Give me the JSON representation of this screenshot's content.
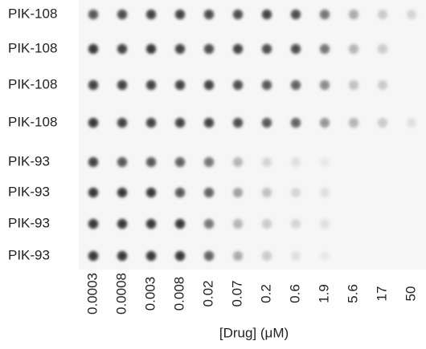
{
  "figure": {
    "x_label": "[Drug] (μM)",
    "columns": [
      "0.0003",
      "0.0008",
      "0.003",
      "0.008",
      "0.02",
      "0.07",
      "0.2",
      "0.6",
      "1.9",
      "5.6",
      "17",
      "50"
    ],
    "rows": [
      {
        "label": "PIK-108",
        "color": "#e0504b",
        "intensity": [
          0.75,
          0.8,
          0.85,
          0.85,
          0.8,
          0.8,
          0.85,
          0.8,
          0.6,
          0.35,
          0.2,
          0.15
        ]
      },
      {
        "label": "PIK-108",
        "color": "#e0504b",
        "intensity": [
          0.9,
          0.85,
          0.9,
          0.85,
          0.8,
          0.85,
          0.8,
          0.8,
          0.6,
          0.3,
          0.2,
          0
        ]
      },
      {
        "label": "PIK-108",
        "color": "#e0504b",
        "intensity": [
          0.85,
          0.85,
          0.85,
          0.85,
          0.85,
          0.8,
          0.75,
          0.7,
          0.5,
          0.25,
          0.2,
          0
        ]
      },
      {
        "label": "PIK-108",
        "color": "#e0504b",
        "intensity": [
          0.9,
          0.85,
          0.85,
          0.85,
          0.85,
          0.8,
          0.75,
          0.7,
          0.45,
          0.3,
          0.2,
          0.1
        ]
      },
      {
        "label": "PIK-93",
        "color": "#1a1a1a",
        "intensity": [
          0.85,
          0.75,
          0.75,
          0.7,
          0.6,
          0.3,
          0.15,
          0.1,
          0.05,
          0,
          0,
          0
        ]
      },
      {
        "label": "PIK-93",
        "color": "#1a1a1a",
        "intensity": [
          0.9,
          0.9,
          0.9,
          0.75,
          0.7,
          0.4,
          0.25,
          0.15,
          0.1,
          0,
          0,
          0
        ]
      },
      {
        "label": "PIK-93",
        "color": "#1a1a1a",
        "intensity": [
          0.9,
          0.9,
          0.9,
          0.9,
          0.6,
          0.3,
          0.2,
          0.15,
          0.1,
          0,
          0,
          0
        ]
      },
      {
        "label": "PIK-93",
        "color": "#1a1a1a",
        "intensity": [
          0.9,
          0.9,
          0.9,
          0.9,
          0.7,
          0.35,
          0.2,
          0.1,
          0.05,
          0,
          0,
          0
        ]
      }
    ]
  }
}
